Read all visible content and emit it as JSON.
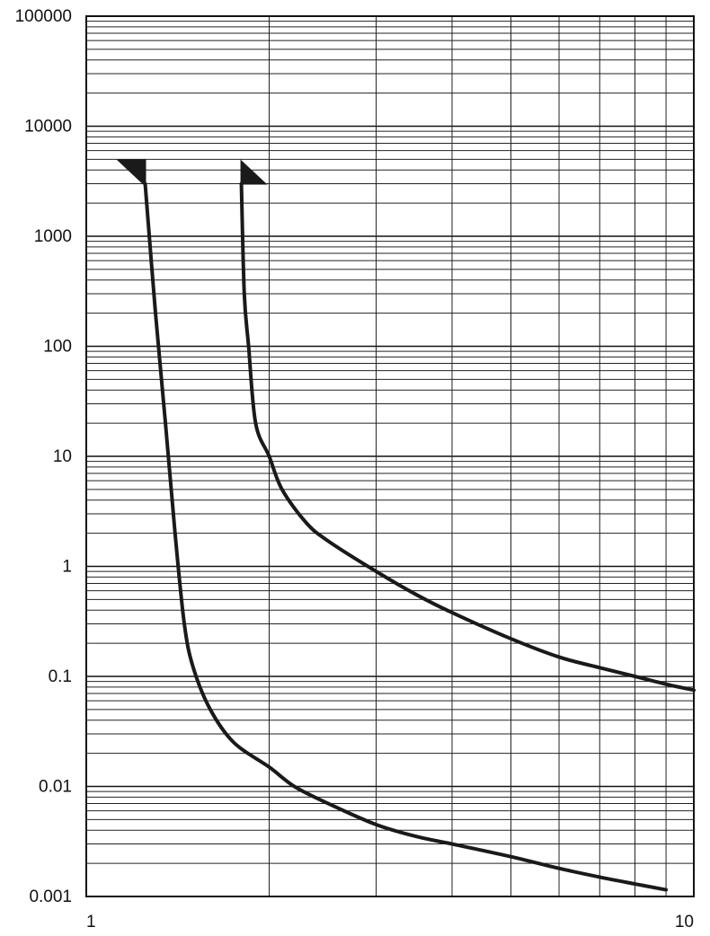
{
  "chart_data": {
    "type": "line",
    "title": "",
    "xlabel": "",
    "ylabel": "",
    "xscale": "log",
    "yscale": "log",
    "xlim": [
      1,
      10
    ],
    "ylim": [
      0.001,
      100000
    ],
    "grid": true,
    "x_tick_labels": [
      "1",
      "10"
    ],
    "x_ticks": [
      1,
      10
    ],
    "y_tick_labels": [
      "100000",
      "10000",
      "1000",
      "100",
      "10",
      "1",
      "0.1",
      "0.01",
      "0.001"
    ],
    "y_ticks": [
      100000,
      10000,
      1000,
      100,
      10,
      1,
      0.1,
      0.01,
      0.001
    ],
    "series": [
      {
        "points": [
          [
            1.25,
            3000
          ],
          [
            1.3,
            200
          ],
          [
            1.35,
            20
          ],
          [
            1.4,
            2
          ],
          [
            1.45,
            0.3
          ],
          [
            1.5,
            0.12
          ],
          [
            1.6,
            0.05
          ],
          [
            1.75,
            0.025
          ],
          [
            2.0,
            0.015
          ],
          [
            2.2,
            0.01
          ],
          [
            2.5,
            0.007
          ],
          [
            3.0,
            0.0045
          ],
          [
            3.5,
            0.0035
          ],
          [
            4.0,
            0.003
          ],
          [
            5.0,
            0.0023
          ],
          [
            6.0,
            0.0018
          ],
          [
            7.0,
            0.0015
          ],
          [
            8.0,
            0.0013
          ],
          [
            9.0,
            0.00115
          ]
        ]
      },
      {
        "points": [
          [
            1.8,
            3000
          ],
          [
            1.82,
            300
          ],
          [
            1.85,
            100
          ],
          [
            1.9,
            20
          ],
          [
            2.0,
            10
          ],
          [
            2.1,
            5
          ],
          [
            2.3,
            2.5
          ],
          [
            2.5,
            1.7
          ],
          [
            3.0,
            0.9
          ],
          [
            3.5,
            0.55
          ],
          [
            4.0,
            0.38
          ],
          [
            5.0,
            0.22
          ],
          [
            6.0,
            0.15
          ],
          [
            7.0,
            0.12
          ],
          [
            8.0,
            0.1
          ],
          [
            9.0,
            0.085
          ],
          [
            10.0,
            0.075
          ]
        ]
      }
    ]
  }
}
